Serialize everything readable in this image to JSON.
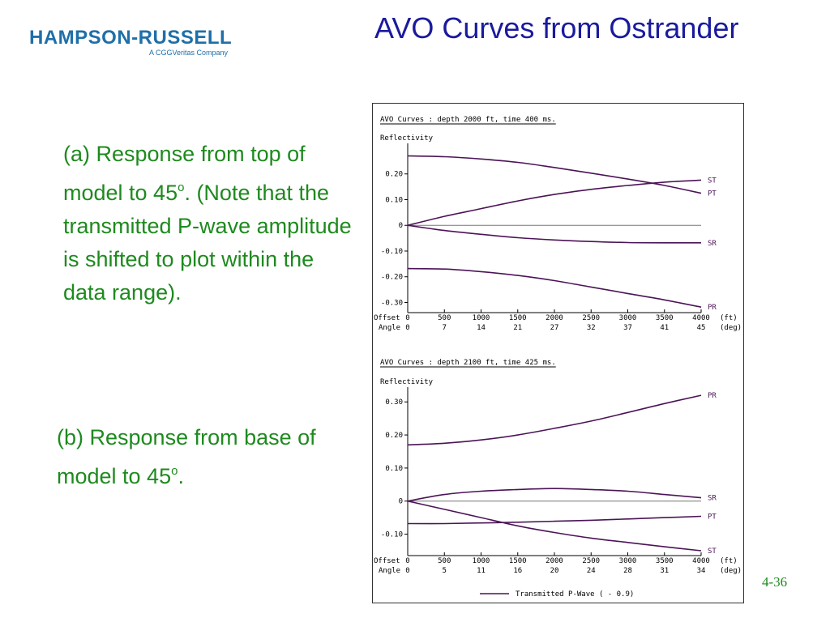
{
  "logo": {
    "main": "HAMPSON-RUSSELL",
    "sub": "A CGGVeritas Company"
  },
  "title": "AVO Curves from Ostrander",
  "captions": {
    "a": {
      "text": "(a) Response from top of model to 45",
      "sup": "o",
      "tail": ". (Note that the transmitted P-wave amplitude is shifted to plot within the data range)."
    },
    "b": {
      "text": "(b) Response from base of model to 45",
      "sup": "o",
      "tail": "."
    }
  },
  "slide_number": "4-36",
  "colors": {
    "title": "#1a1a9e",
    "caption": "#1e8a1e",
    "logo": "#1f6fa8",
    "curve": "#4b1456"
  },
  "chart_data": [
    {
      "type": "line",
      "title": "AVO Curves :  depth 2000 ft, time 400 ms.",
      "ylabel": "Reflectivity",
      "ylim": [
        -0.33,
        0.3
      ],
      "yticks": [
        0.2,
        0.1,
        0,
        -0.1,
        -0.2,
        -0.3
      ],
      "ytick_labels": [
        "0.20",
        "0.10",
        "0",
        "-0.10",
        "-0.20",
        "-0.30"
      ],
      "xlim": [
        0,
        4000
      ],
      "offset_label": "Offset",
      "angle_label": "Angle",
      "offset_unit": "(ft)",
      "angle_unit": "(deg)",
      "offsets": [
        0,
        500,
        1000,
        1500,
        2000,
        2500,
        3000,
        3500,
        4000
      ],
      "offset_labels": [
        "0",
        "500",
        "1000",
        "1500",
        "2000",
        "2500",
        "3000",
        "3500",
        "4000"
      ],
      "angles": [
        "0",
        "7",
        "14",
        "21",
        "27",
        "32",
        "37",
        "41",
        "45"
      ],
      "x": [
        0,
        500,
        1000,
        1500,
        2000,
        2500,
        3000,
        3500,
        4000
      ],
      "series": [
        {
          "name": "ST",
          "values": [
            0,
            0.035,
            0.065,
            0.095,
            0.12,
            0.14,
            0.155,
            0.168,
            0.176
          ]
        },
        {
          "name": "PT",
          "values": [
            0.27,
            0.267,
            0.258,
            0.245,
            0.225,
            0.203,
            0.18,
            0.155,
            0.125
          ]
        },
        {
          "name": "SR",
          "values": [
            0,
            -0.02,
            -0.035,
            -0.048,
            -0.057,
            -0.063,
            -0.067,
            -0.068,
            -0.068
          ]
        },
        {
          "name": "PR",
          "values": [
            -0.168,
            -0.17,
            -0.18,
            -0.195,
            -0.215,
            -0.24,
            -0.265,
            -0.29,
            -0.318
          ]
        }
      ]
    },
    {
      "type": "line",
      "title": "AVO Curves :  depth 2100 ft, time 425 ms.",
      "ylabel": "Reflectivity",
      "ylim": [
        -0.155,
        0.33
      ],
      "yticks": [
        0.3,
        0.2,
        0.1,
        0,
        -0.1
      ],
      "ytick_labels": [
        "0.30",
        "0.20",
        "0.10",
        "0",
        "-0.10"
      ],
      "xlim": [
        0,
        4000
      ],
      "offset_label": "Offset",
      "angle_label": "Angle",
      "offset_unit": "(ft)",
      "angle_unit": "(deg)",
      "offsets": [
        0,
        500,
        1000,
        1500,
        2000,
        2500,
        3000,
        3500,
        4000
      ],
      "offset_labels": [
        "0",
        "500",
        "1000",
        "1500",
        "2000",
        "2500",
        "3000",
        "3500",
        "4000"
      ],
      "angles": [
        "0",
        "5",
        "11",
        "16",
        "20",
        "24",
        "28",
        "31",
        "34"
      ],
      "x": [
        0,
        500,
        1000,
        1500,
        2000,
        2500,
        3000,
        3500,
        4000
      ],
      "series": [
        {
          "name": "PR",
          "values": [
            0.17,
            0.175,
            0.185,
            0.2,
            0.22,
            0.242,
            0.268,
            0.295,
            0.32
          ]
        },
        {
          "name": "SR",
          "values": [
            0,
            0.02,
            0.03,
            0.035,
            0.038,
            0.035,
            0.03,
            0.02,
            0.01
          ]
        },
        {
          "name": "PT",
          "values": [
            -0.068,
            -0.068,
            -0.066,
            -0.064,
            -0.061,
            -0.058,
            -0.054,
            -0.05,
            -0.046
          ]
        },
        {
          "name": "ST",
          "values": [
            0,
            -0.025,
            -0.05,
            -0.075,
            -0.095,
            -0.112,
            -0.125,
            -0.138,
            -0.15
          ]
        }
      ],
      "legend": {
        "label": "Transmitted P-Wave ( - 0.9)"
      }
    }
  ]
}
